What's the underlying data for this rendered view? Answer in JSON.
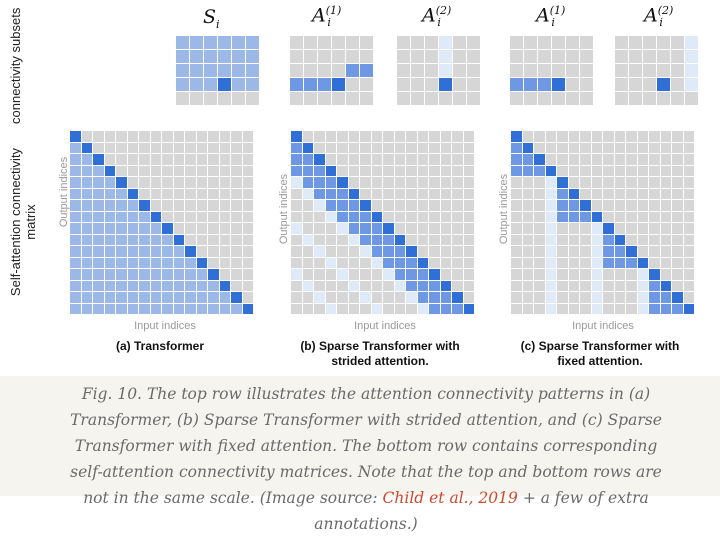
{
  "labels": {
    "top_row": "connectivity subsets",
    "bottom_row": "Self-attention connectivity matrix",
    "output_axis": "Output indices",
    "input_axis": "Input indices",
    "S": "S",
    "A": "A",
    "i": "i",
    "sup1": "(1)",
    "sup2": "(2)"
  },
  "panels": [
    {
      "caption_line1": "(a) Transformer",
      "caption_line2": ""
    },
    {
      "caption_line1": "(b) Sparse Transformer with",
      "caption_line2": "strided attention."
    },
    {
      "caption_line1": "(c) Sparse Transformer with",
      "caption_line2": "fixed attention."
    }
  ],
  "caption": {
    "part1": "Fig. 10. The top row illustrates the attention connectivity patterns in (a) Transformer, (b) Sparse Transformer with strided attention, and (c) Sparse Transformer with fixed attention. The bottom row contains corresponding self-attention connectivity matrices. Note that the top and bottom rows are not in the same scale. (Image source: ",
    "link": "Child et al., 2019",
    "part2": " + a few of extra annotations.)"
  },
  "colors": {
    "gray": "#d6d6d6",
    "light_blue": "#9bb8e6",
    "dark_blue": "#2f6fd6",
    "pale_blue": "#dfeaf8",
    "mid_blue": "#6e98e3",
    "link": "#d0482c"
  }
}
